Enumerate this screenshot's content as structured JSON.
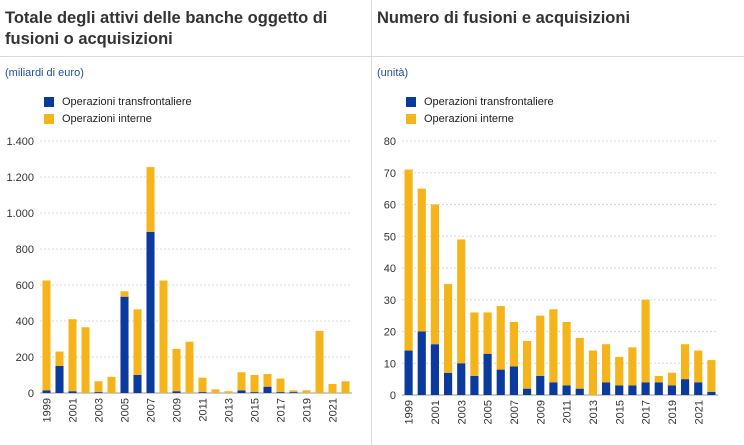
{
  "colors": {
    "cross_border": "#0b3a9e",
    "domestic": "#f5b41a",
    "unit_text": "#1f4e9e",
    "grid": "#d9d9d9"
  },
  "left": {
    "title": "Totale degli attivi delle banche oggetto di fusioni o acquisizioni",
    "unit": "(miliardi di euro)",
    "legend": [
      "Operazioni transfrontaliere",
      "Operazioni interne"
    ]
  },
  "right": {
    "title": "Numero di fusioni e acquisizioni",
    "unit": "(unità)",
    "legend": [
      "Operazioni transfrontaliere",
      "Operazioni interne"
    ]
  },
  "chart_data": [
    {
      "type": "bar",
      "stacked": true,
      "title": "Totale degli attivi delle banche oggetto di fusioni o acquisizioni",
      "ylabel": "(miliardi di euro)",
      "ylim": [
        0,
        1400
      ],
      "yticks": [
        0,
        200,
        400,
        600,
        800,
        1000,
        1200,
        1400
      ],
      "ytick_labels": [
        "0",
        "200",
        "400",
        "600",
        "800",
        "1.000",
        "1.200",
        "1.400"
      ],
      "categories": [
        "1999",
        "2000",
        "2001",
        "2002",
        "2003",
        "2004",
        "2005",
        "2006",
        "2007",
        "2008",
        "2009",
        "2010",
        "2011",
        "2012",
        "2013",
        "2014",
        "2015",
        "2016",
        "2017",
        "2018",
        "2019",
        "2020",
        "2021",
        "2022"
      ],
      "xtick_labels": [
        "1999",
        "2001",
        "2003",
        "2005",
        "2007",
        "2009",
        "2011",
        "2013",
        "2015",
        "2017",
        "2019",
        "2021"
      ],
      "series": [
        {
          "name": "Operazioni transfrontaliere",
          "values": [
            15,
            150,
            10,
            0,
            5,
            0,
            535,
            100,
            895,
            0,
            10,
            0,
            5,
            0,
            0,
            15,
            5,
            35,
            5,
            5,
            0,
            0,
            0,
            0
          ]
        },
        {
          "name": "Operazioni interne",
          "values": [
            610,
            80,
            400,
            365,
            60,
            90,
            30,
            365,
            360,
            625,
            235,
            285,
            80,
            20,
            10,
            100,
            95,
            70,
            75,
            10,
            15,
            345,
            50,
            65
          ]
        }
      ]
    },
    {
      "type": "bar",
      "stacked": true,
      "title": "Numero di fusioni e acquisizioni",
      "ylabel": "(unità)",
      "ylim": [
        0,
        80
      ],
      "yticks": [
        0,
        10,
        20,
        30,
        40,
        50,
        60,
        70,
        80
      ],
      "ytick_labels": [
        "0",
        "10",
        "20",
        "30",
        "40",
        "50",
        "60",
        "70",
        "80"
      ],
      "categories": [
        "1999",
        "2000",
        "2001",
        "2002",
        "2003",
        "2004",
        "2005",
        "2006",
        "2007",
        "2008",
        "2009",
        "2010",
        "2011",
        "2012",
        "2013",
        "2014",
        "2015",
        "2016",
        "2017",
        "2018",
        "2019",
        "2020",
        "2021",
        "2022"
      ],
      "xtick_labels": [
        "1999",
        "2001",
        "2003",
        "2005",
        "2007",
        "2009",
        "2011",
        "2013",
        "2015",
        "2017",
        "2019",
        "2021"
      ],
      "series": [
        {
          "name": "Operazioni transfrontaliere",
          "values": [
            14,
            20,
            16,
            7,
            10,
            6,
            13,
            8,
            9,
            2,
            6,
            4,
            3,
            2,
            0,
            4,
            3,
            3,
            4,
            4,
            3,
            5,
            4,
            1
          ]
        },
        {
          "name": "Operazioni interne",
          "values": [
            57,
            45,
            44,
            28,
            39,
            20,
            13,
            20,
            14,
            15,
            19,
            23,
            20,
            16,
            14,
            12,
            9,
            12,
            26,
            2,
            4,
            11,
            10,
            10
          ]
        }
      ]
    }
  ]
}
